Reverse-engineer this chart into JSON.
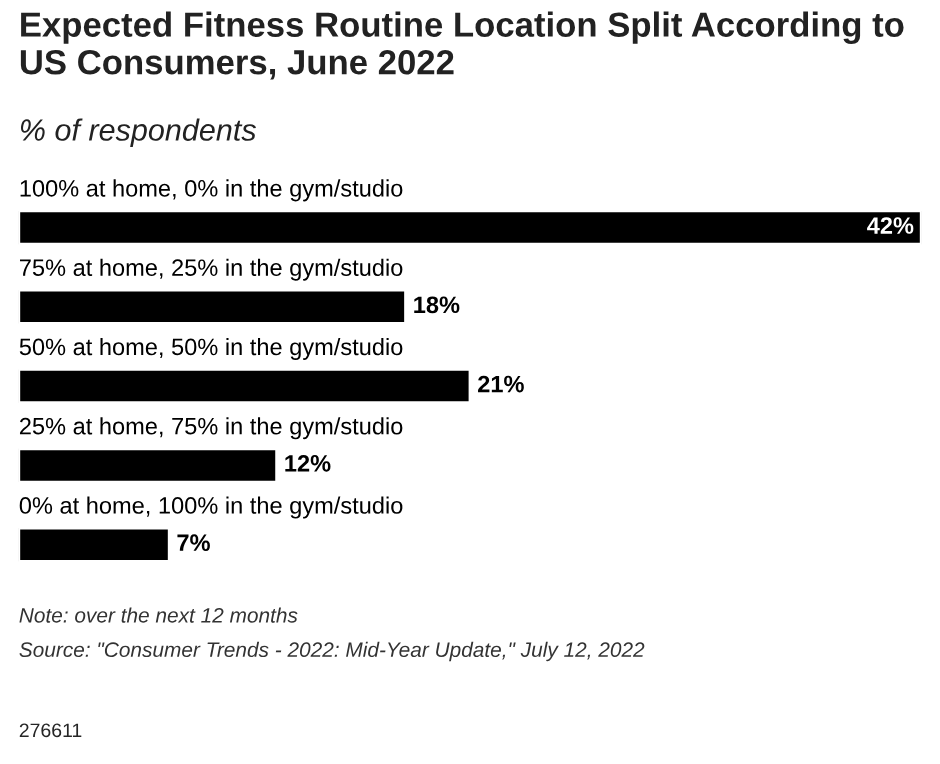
{
  "chart_data": {
    "type": "bar",
    "orientation": "horizontal",
    "title": "Expected Fitness Routine Location Split According to US Consumers, June 2022",
    "subtitle": "% of respondents",
    "categories": [
      "100% at home, 0% in the gym/studio",
      "75% at home, 25% in the gym/studio",
      "50% at home, 50% in the gym/studio",
      "25% at home, 75% in the gym/studio",
      "0% at home, 100% in the gym/studio"
    ],
    "values": [
      42,
      18,
      21,
      12,
      7
    ],
    "value_labels": [
      "42%",
      "18%",
      "21%",
      "12%",
      "7%"
    ],
    "color": "#000000",
    "annotations": [
      "Note: over the next 12 months",
      "Source: \"Consumer Trends - 2022: Mid-Year Update,\" July 12, 2022",
      "276611"
    ]
  }
}
